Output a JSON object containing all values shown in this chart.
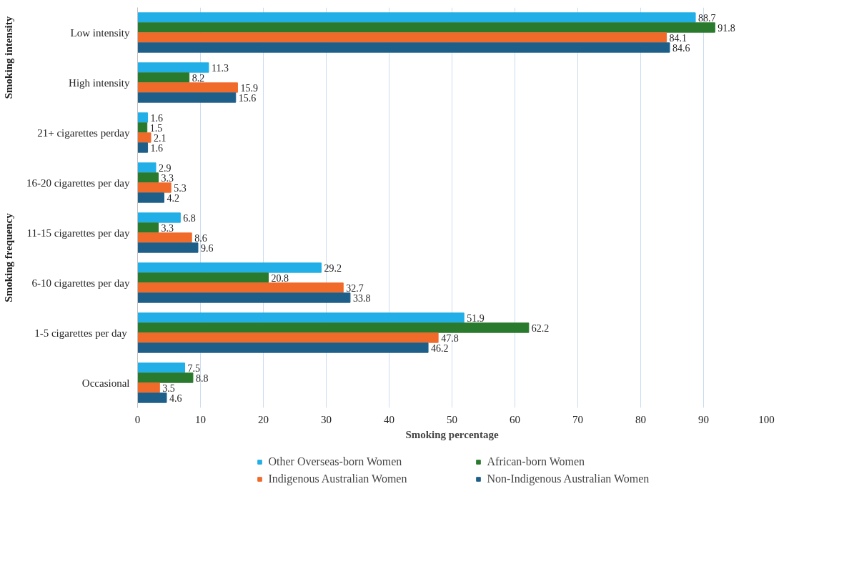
{
  "chart_data": {
    "type": "bar",
    "orientation": "horizontal",
    "xlabel": "Smoking percentage",
    "categories": [
      "Low intensity",
      "High intensity",
      "21+ cigarettes perday",
      "16-20 cigarettes per day",
      "11-15 cigarettes per day",
      "6-10 cigarettes per day",
      "1-5 cigarettes per  day",
      "Occasional"
    ],
    "series": [
      {
        "name": "Other Overseas-born Women",
        "color": "#22aee6",
        "values": [
          88.7,
          11.3,
          1.6,
          2.9,
          6.8,
          29.2,
          51.9,
          7.5
        ]
      },
      {
        "name": "African-born Women",
        "color": "#2a7a2e",
        "values": [
          91.8,
          8.2,
          1.5,
          3.3,
          3.3,
          20.8,
          62.2,
          8.8
        ]
      },
      {
        "name": "Indigenous Australian Women",
        "color": "#f06a2a",
        "values": [
          84.1,
          15.9,
          2.1,
          5.3,
          8.6,
          32.7,
          47.8,
          3.5
        ]
      },
      {
        "name": "Non-Indigenous Australian Women",
        "color": "#1e5f8a",
        "values": [
          84.6,
          15.6,
          1.6,
          4.2,
          9.6,
          33.8,
          46.2,
          4.6
        ]
      }
    ],
    "xlim": [
      0,
      100
    ],
    "xticks": [
      0,
      10,
      20,
      30,
      40,
      50,
      60,
      70,
      80,
      90,
      100
    ],
    "grid": "x",
    "legend": "bottom",
    "data_labels": true,
    "annotations": [
      "Smoking intensity",
      "Smoking frequency"
    ]
  }
}
